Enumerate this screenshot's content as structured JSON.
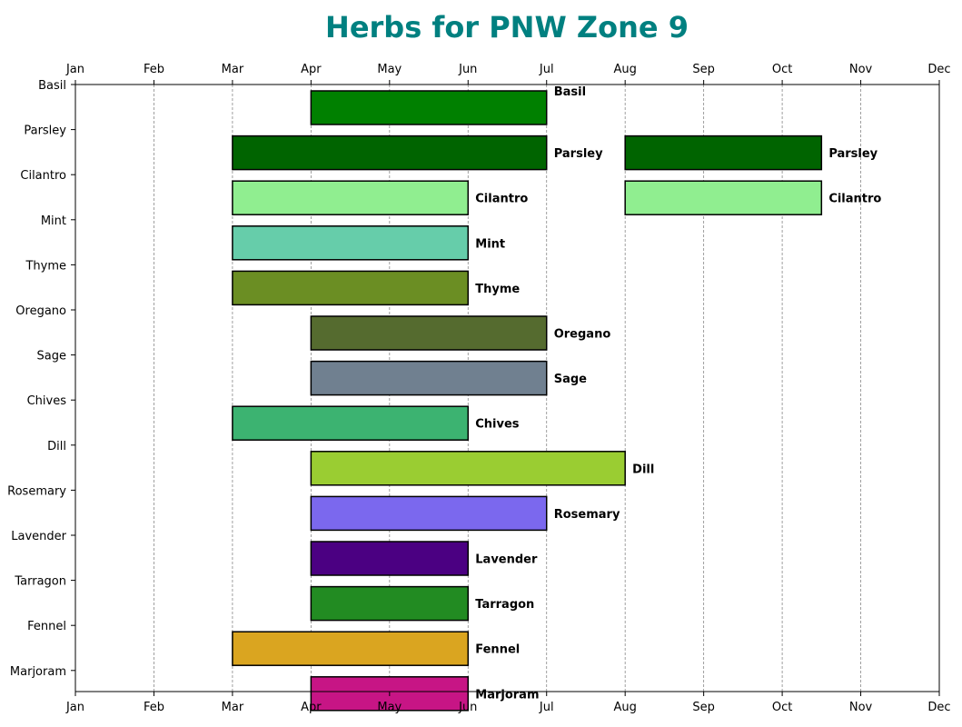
{
  "chart_data": {
    "type": "bar",
    "orientation": "horizontal",
    "title": "Herbs for PNW Zone 9",
    "title_color": "#008080",
    "xlabel": "",
    "ylabel": "",
    "x_tick_labels": [
      "Jan",
      "Feb",
      "Mar",
      "Apr",
      "May",
      "Jun",
      "Jul",
      "Aug",
      "Sep",
      "Oct",
      "Nov",
      "Dec"
    ],
    "x_tick_values": [
      1,
      2,
      3,
      4,
      5,
      6,
      7,
      8,
      9,
      10,
      11,
      12
    ],
    "xlim": [
      1,
      12
    ],
    "x_axis_position": "top and bottom",
    "grid": "vertical dashed",
    "categories": [
      "Basil",
      "Parsley",
      "Cilantro",
      "Mint",
      "Thyme",
      "Oregano",
      "Sage",
      "Chives",
      "Dill",
      "Rosemary",
      "Lavender",
      "Tarragon",
      "Fennel",
      "Marjoram"
    ],
    "series": [
      {
        "name": "Basil",
        "color": "#008000",
        "intervals": [
          [
            4.0,
            7.0
          ]
        ]
      },
      {
        "name": "Parsley",
        "color": "#006400",
        "intervals": [
          [
            3.0,
            7.0
          ],
          [
            8.0,
            10.5
          ]
        ]
      },
      {
        "name": "Cilantro",
        "color": "#90EE90",
        "intervals": [
          [
            3.0,
            6.0
          ],
          [
            8.0,
            10.5
          ]
        ]
      },
      {
        "name": "Mint",
        "color": "#66CDAA",
        "intervals": [
          [
            3.0,
            6.0
          ]
        ]
      },
      {
        "name": "Thyme",
        "color": "#6B8E23",
        "intervals": [
          [
            3.0,
            6.0
          ]
        ]
      },
      {
        "name": "Oregano",
        "color": "#556B2F",
        "intervals": [
          [
            4.0,
            7.0
          ]
        ]
      },
      {
        "name": "Sage",
        "color": "#708090",
        "intervals": [
          [
            4.0,
            7.0
          ]
        ]
      },
      {
        "name": "Chives",
        "color": "#3CB371",
        "intervals": [
          [
            3.0,
            6.0
          ]
        ]
      },
      {
        "name": "Dill",
        "color": "#9ACD32",
        "intervals": [
          [
            4.0,
            8.0
          ]
        ]
      },
      {
        "name": "Rosemary",
        "color": "#7B68EE",
        "intervals": [
          [
            4.0,
            7.0
          ]
        ]
      },
      {
        "name": "Lavender",
        "color": "#4B0082",
        "intervals": [
          [
            4.0,
            6.0
          ]
        ]
      },
      {
        "name": "Tarragon",
        "color": "#228B22",
        "intervals": [
          [
            4.0,
            6.0
          ]
        ]
      },
      {
        "name": "Fennel",
        "color": "#DAA520",
        "intervals": [
          [
            3.0,
            6.0
          ]
        ]
      },
      {
        "name": "Marjoram",
        "color": "#C71585",
        "intervals": [
          [
            4.0,
            6.0
          ]
        ]
      }
    ]
  }
}
